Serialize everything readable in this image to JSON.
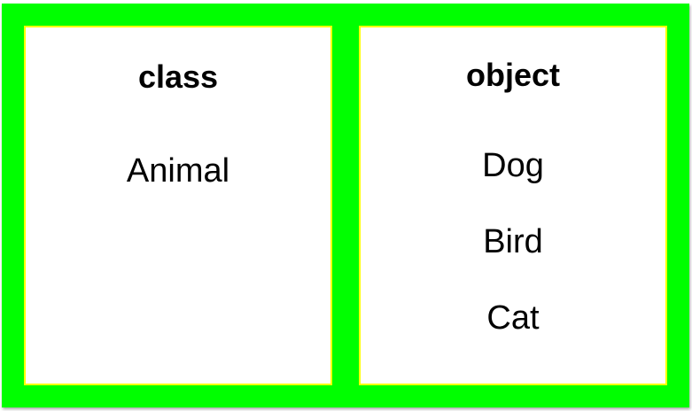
{
  "left_panel": {
    "heading": "class",
    "items": [
      "Animal"
    ]
  },
  "right_panel": {
    "heading": "object",
    "items": [
      "Dog",
      "Bird",
      "Cat"
    ]
  },
  "colors": {
    "frame": "#00ff00",
    "panel_border": "#ffff00",
    "panel_fill": "#ffffff",
    "text": "#000000"
  }
}
